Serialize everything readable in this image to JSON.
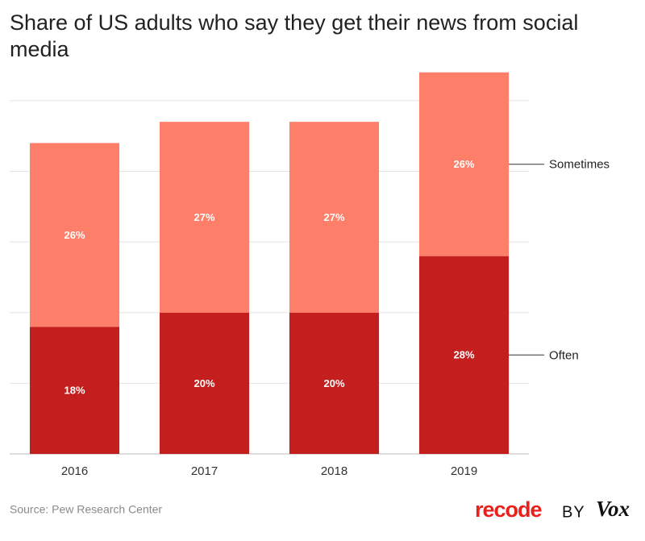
{
  "chart_data": {
    "type": "stacked_bar",
    "title": "Share of US adults who say they get their news from social media",
    "categories": [
      "2016",
      "2017",
      "2018",
      "2019"
    ],
    "series": [
      {
        "name": "Often",
        "color": "#c41f1f",
        "values": [
          18,
          20,
          20,
          28
        ],
        "value_labels": [
          "18%",
          "20%",
          "20%",
          "28%"
        ]
      },
      {
        "name": "Sometimes",
        "color": "#fe7f69",
        "values": [
          26,
          27,
          27,
          26
        ],
        "value_labels": [
          "26%",
          "27%",
          "27%",
          "26%"
        ]
      }
    ],
    "ylim": [
      0,
      55
    ],
    "yticks": [
      0,
      10,
      20,
      30,
      40,
      50
    ],
    "grid": true,
    "source": "Source: Pew Research Center",
    "branding": [
      "recode",
      "BY",
      "Vox"
    ]
  }
}
